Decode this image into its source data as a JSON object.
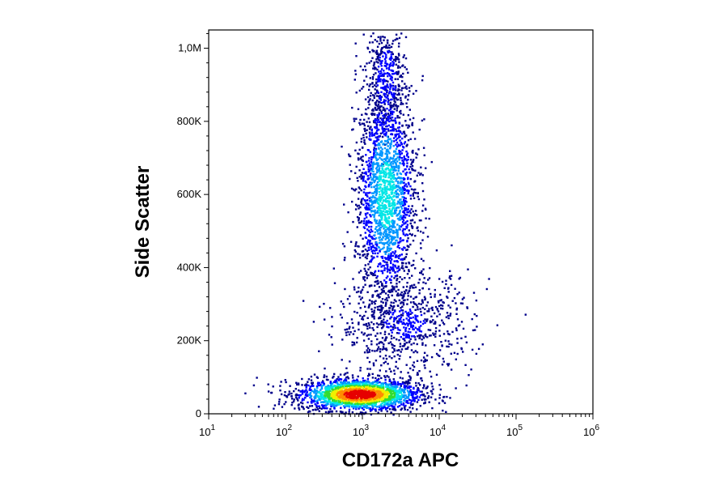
{
  "chart_data": {
    "type": "scatter",
    "subtype": "flow-cytometry-density-plot",
    "xlabel": "CD172a APC",
    "ylabel": "Side Scatter",
    "x_scale": "log",
    "xlim": [
      10,
      1000000
    ],
    "ylim": [
      0,
      1050000
    ],
    "x_ticks": [
      {
        "value": 10,
        "base": "10",
        "exp": "1"
      },
      {
        "value": 100,
        "base": "10",
        "exp": "2"
      },
      {
        "value": 1000,
        "base": "10",
        "exp": "3"
      },
      {
        "value": 10000,
        "base": "10",
        "exp": "4"
      },
      {
        "value": 100000,
        "base": "10",
        "exp": "5"
      },
      {
        "value": 1000000,
        "base": "10",
        "exp": "6"
      }
    ],
    "y_ticks": [
      {
        "value": 0,
        "label": "0"
      },
      {
        "value": 200000,
        "label": "200K"
      },
      {
        "value": 400000,
        "label": "400K"
      },
      {
        "value": 600000,
        "label": "600K"
      },
      {
        "value": 800000,
        "label": "800K"
      },
      {
        "value": 1000000,
        "label": "1,0M"
      }
    ],
    "grid": false,
    "legend": "none",
    "colormap": [
      "#00008b",
      "#0000ff",
      "#0096ff",
      "#00e6e6",
      "#32dc32",
      "#f0f000",
      "#ff8c00",
      "#e60000"
    ],
    "populations": [
      {
        "center_x": 900,
        "center_y": 55000,
        "spread_logx": 0.18,
        "spread_y": 22000,
        "weight": 0.4,
        "peak_density": 1.0
      },
      {
        "center_x": 2000,
        "center_y": 600000,
        "spread_logx": 0.09,
        "spread_y": 150000,
        "weight": 0.38,
        "peak_density": 0.45
      },
      {
        "center_x": 3500,
        "center_y": 250000,
        "spread_logx": 0.2,
        "spread_y": 70000,
        "weight": 0.14,
        "peak_density": 0.15
      },
      {
        "center_x": 2000,
        "center_y": 920000,
        "spread_logx": 0.06,
        "spread_y": 80000,
        "weight": 0.08,
        "peak_density": 0.2
      }
    ]
  }
}
